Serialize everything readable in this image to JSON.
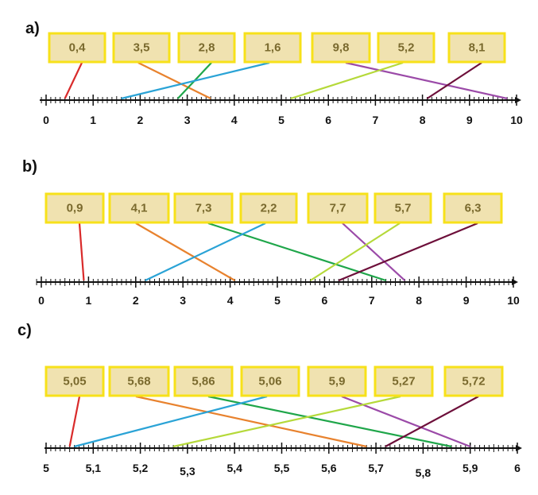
{
  "colors": {
    "box_fill": "#f0e2b0",
    "box_border": "#f7e11a",
    "box_text": "#7a6a2e",
    "line_colors": [
      "#d92b2b",
      "#2aa3d6",
      "#e8822e",
      "#1fa64a",
      "#b5d93a",
      "#9b4aa8",
      "#6d0f3a"
    ]
  },
  "parts": [
    {
      "label": "a)",
      "axis_min": 0,
      "axis_max": 10,
      "tick_labels": [
        {
          "value": 0,
          "text": "0"
        },
        {
          "value": 1,
          "text": "1"
        },
        {
          "value": 2,
          "text": "2"
        },
        {
          "value": 3,
          "text": "3"
        },
        {
          "value": 4,
          "text": "4"
        },
        {
          "value": 5,
          "text": "5"
        },
        {
          "value": 6,
          "text": "6"
        },
        {
          "value": 7,
          "text": "7"
        },
        {
          "value": 8,
          "text": "8"
        },
        {
          "value": 9,
          "text": "9"
        },
        {
          "value": 10,
          "text": "10"
        }
      ],
      "boxes": [
        {
          "text": "0,4",
          "value": 0.4,
          "color": "#d92b2b"
        },
        {
          "text": "3,5",
          "value": 3.5,
          "color": "#e8822e"
        },
        {
          "text": "2,8",
          "value": 2.8,
          "color": "#1fa64a"
        },
        {
          "text": "1,6",
          "value": 1.6,
          "color": "#2aa3d6"
        },
        {
          "text": "9,8",
          "value": 9.8,
          "color": "#9b4aa8"
        },
        {
          "text": "5,2",
          "value": 5.2,
          "color": "#b5d93a"
        },
        {
          "text": "8,1",
          "value": 8.1,
          "color": "#6d0f3a"
        }
      ]
    },
    {
      "label": "b)",
      "axis_min": 0,
      "axis_max": 10,
      "tick_labels": [
        {
          "value": 0,
          "text": "0"
        },
        {
          "value": 1,
          "text": "1"
        },
        {
          "value": 2,
          "text": "2"
        },
        {
          "value": 3,
          "text": "3"
        },
        {
          "value": 4,
          "text": "4"
        },
        {
          "value": 5,
          "text": "5"
        },
        {
          "value": 6,
          "text": "6"
        },
        {
          "value": 7,
          "text": "7"
        },
        {
          "value": 8,
          "text": "8"
        },
        {
          "value": 9,
          "text": "9"
        },
        {
          "value": 10,
          "text": "10"
        }
      ],
      "boxes": [
        {
          "text": "0,9",
          "value": 0.9,
          "color": "#d92b2b"
        },
        {
          "text": "4,1",
          "value": 4.1,
          "color": "#e8822e"
        },
        {
          "text": "7,3",
          "value": 7.3,
          "color": "#1fa64a"
        },
        {
          "text": "2,2",
          "value": 2.2,
          "color": "#2aa3d6"
        },
        {
          "text": "7,7",
          "value": 7.7,
          "color": "#9b4aa8"
        },
        {
          "text": "5,7",
          "value": 5.7,
          "color": "#b5d93a"
        },
        {
          "text": "6,3",
          "value": 6.3,
          "color": "#6d0f3a"
        }
      ]
    },
    {
      "label": "c)",
      "axis_min": 5,
      "axis_max": 6,
      "tick_labels": [
        {
          "value": 5.0,
          "text": "5"
        },
        {
          "value": 5.1,
          "text": "5,1"
        },
        {
          "value": 5.2,
          "text": "5,2"
        },
        {
          "value": 5.3,
          "text": "5,3"
        },
        {
          "value": 5.4,
          "text": "5,4"
        },
        {
          "value": 5.5,
          "text": "5,5"
        },
        {
          "value": 5.6,
          "text": "5,6"
        },
        {
          "value": 5.7,
          "text": "5,7"
        },
        {
          "value": 5.8,
          "text": "5,8"
        },
        {
          "value": 5.9,
          "text": "5,9"
        },
        {
          "value": 6.0,
          "text": "6"
        }
      ],
      "boxes": [
        {
          "text": "5,05",
          "value": 5.05,
          "color": "#d92b2b"
        },
        {
          "text": "5,68",
          "value": 5.68,
          "color": "#e8822e"
        },
        {
          "text": "5,86",
          "value": 5.86,
          "color": "#1fa64a"
        },
        {
          "text": "5,06",
          "value": 5.06,
          "color": "#2aa3d6"
        },
        {
          "text": "5,9",
          "value": 5.9,
          "color": "#9b4aa8"
        },
        {
          "text": "5,27",
          "value": 5.27,
          "color": "#b5d93a"
        },
        {
          "text": "5,72",
          "value": 5.72,
          "color": "#6d0f3a"
        }
      ]
    }
  ]
}
